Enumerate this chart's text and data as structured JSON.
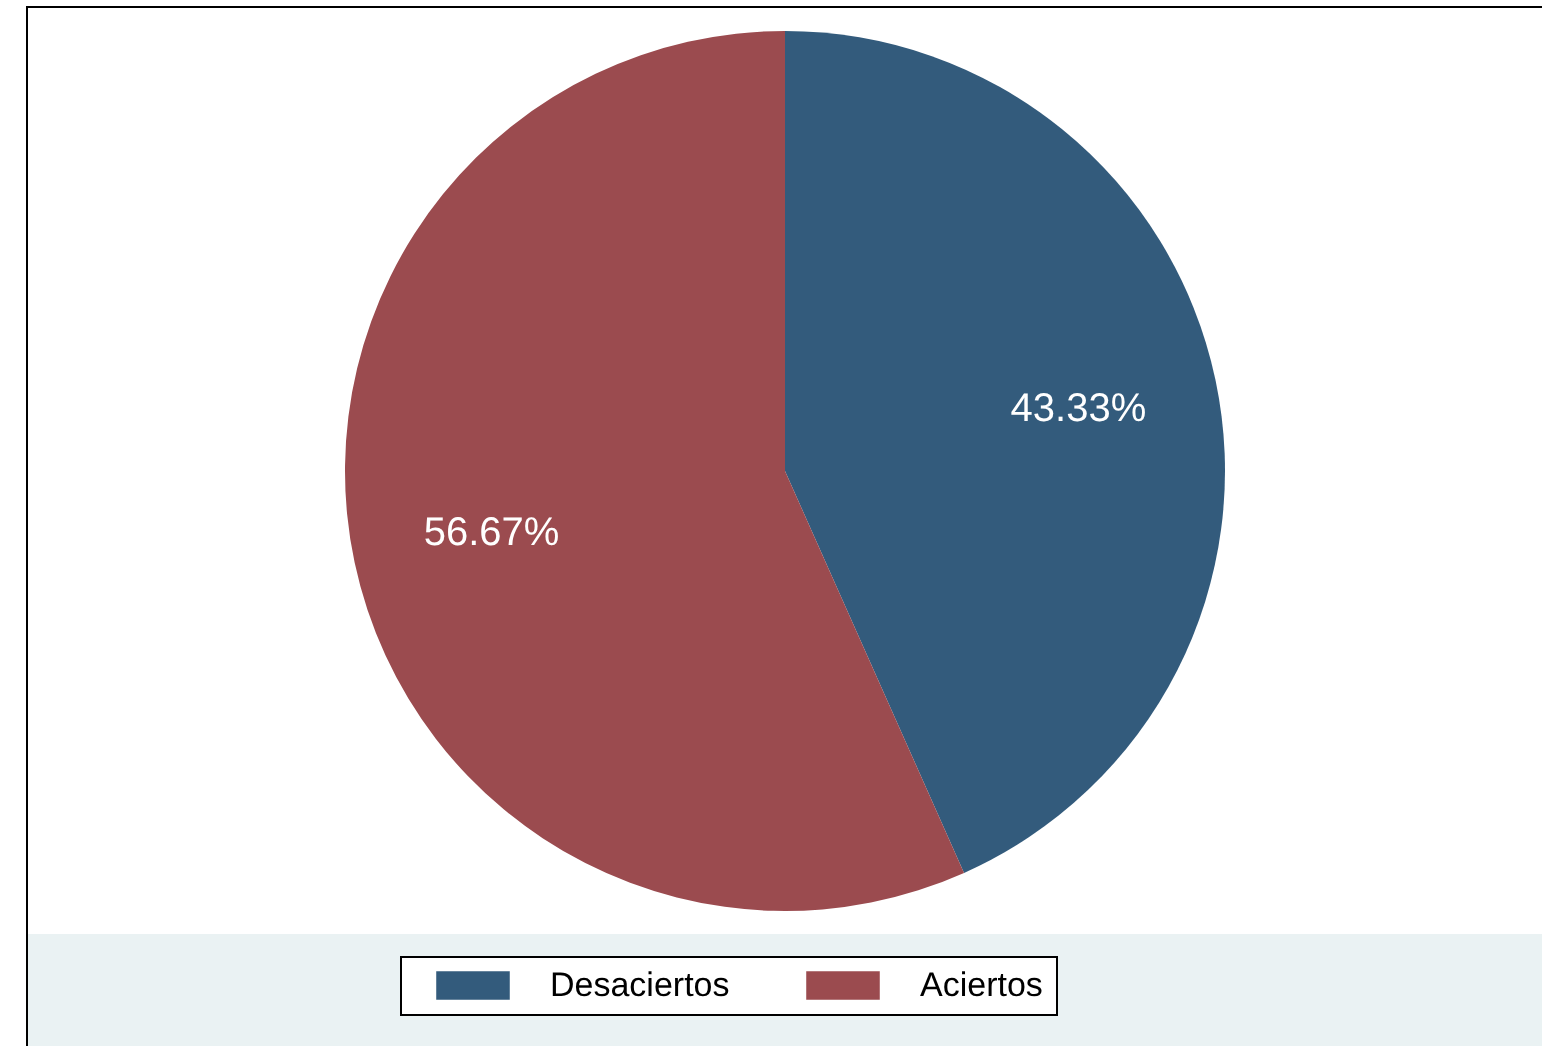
{
  "chart_data": {
    "type": "pie",
    "categories": [
      "Desaciertos",
      "Aciertos"
    ],
    "values": [
      43.33,
      56.67
    ],
    "colors": [
      "#335b7c",
      "#9b4b4f"
    ],
    "value_labels": [
      "43.33%",
      "56.67%"
    ],
    "legend": "bottom"
  }
}
